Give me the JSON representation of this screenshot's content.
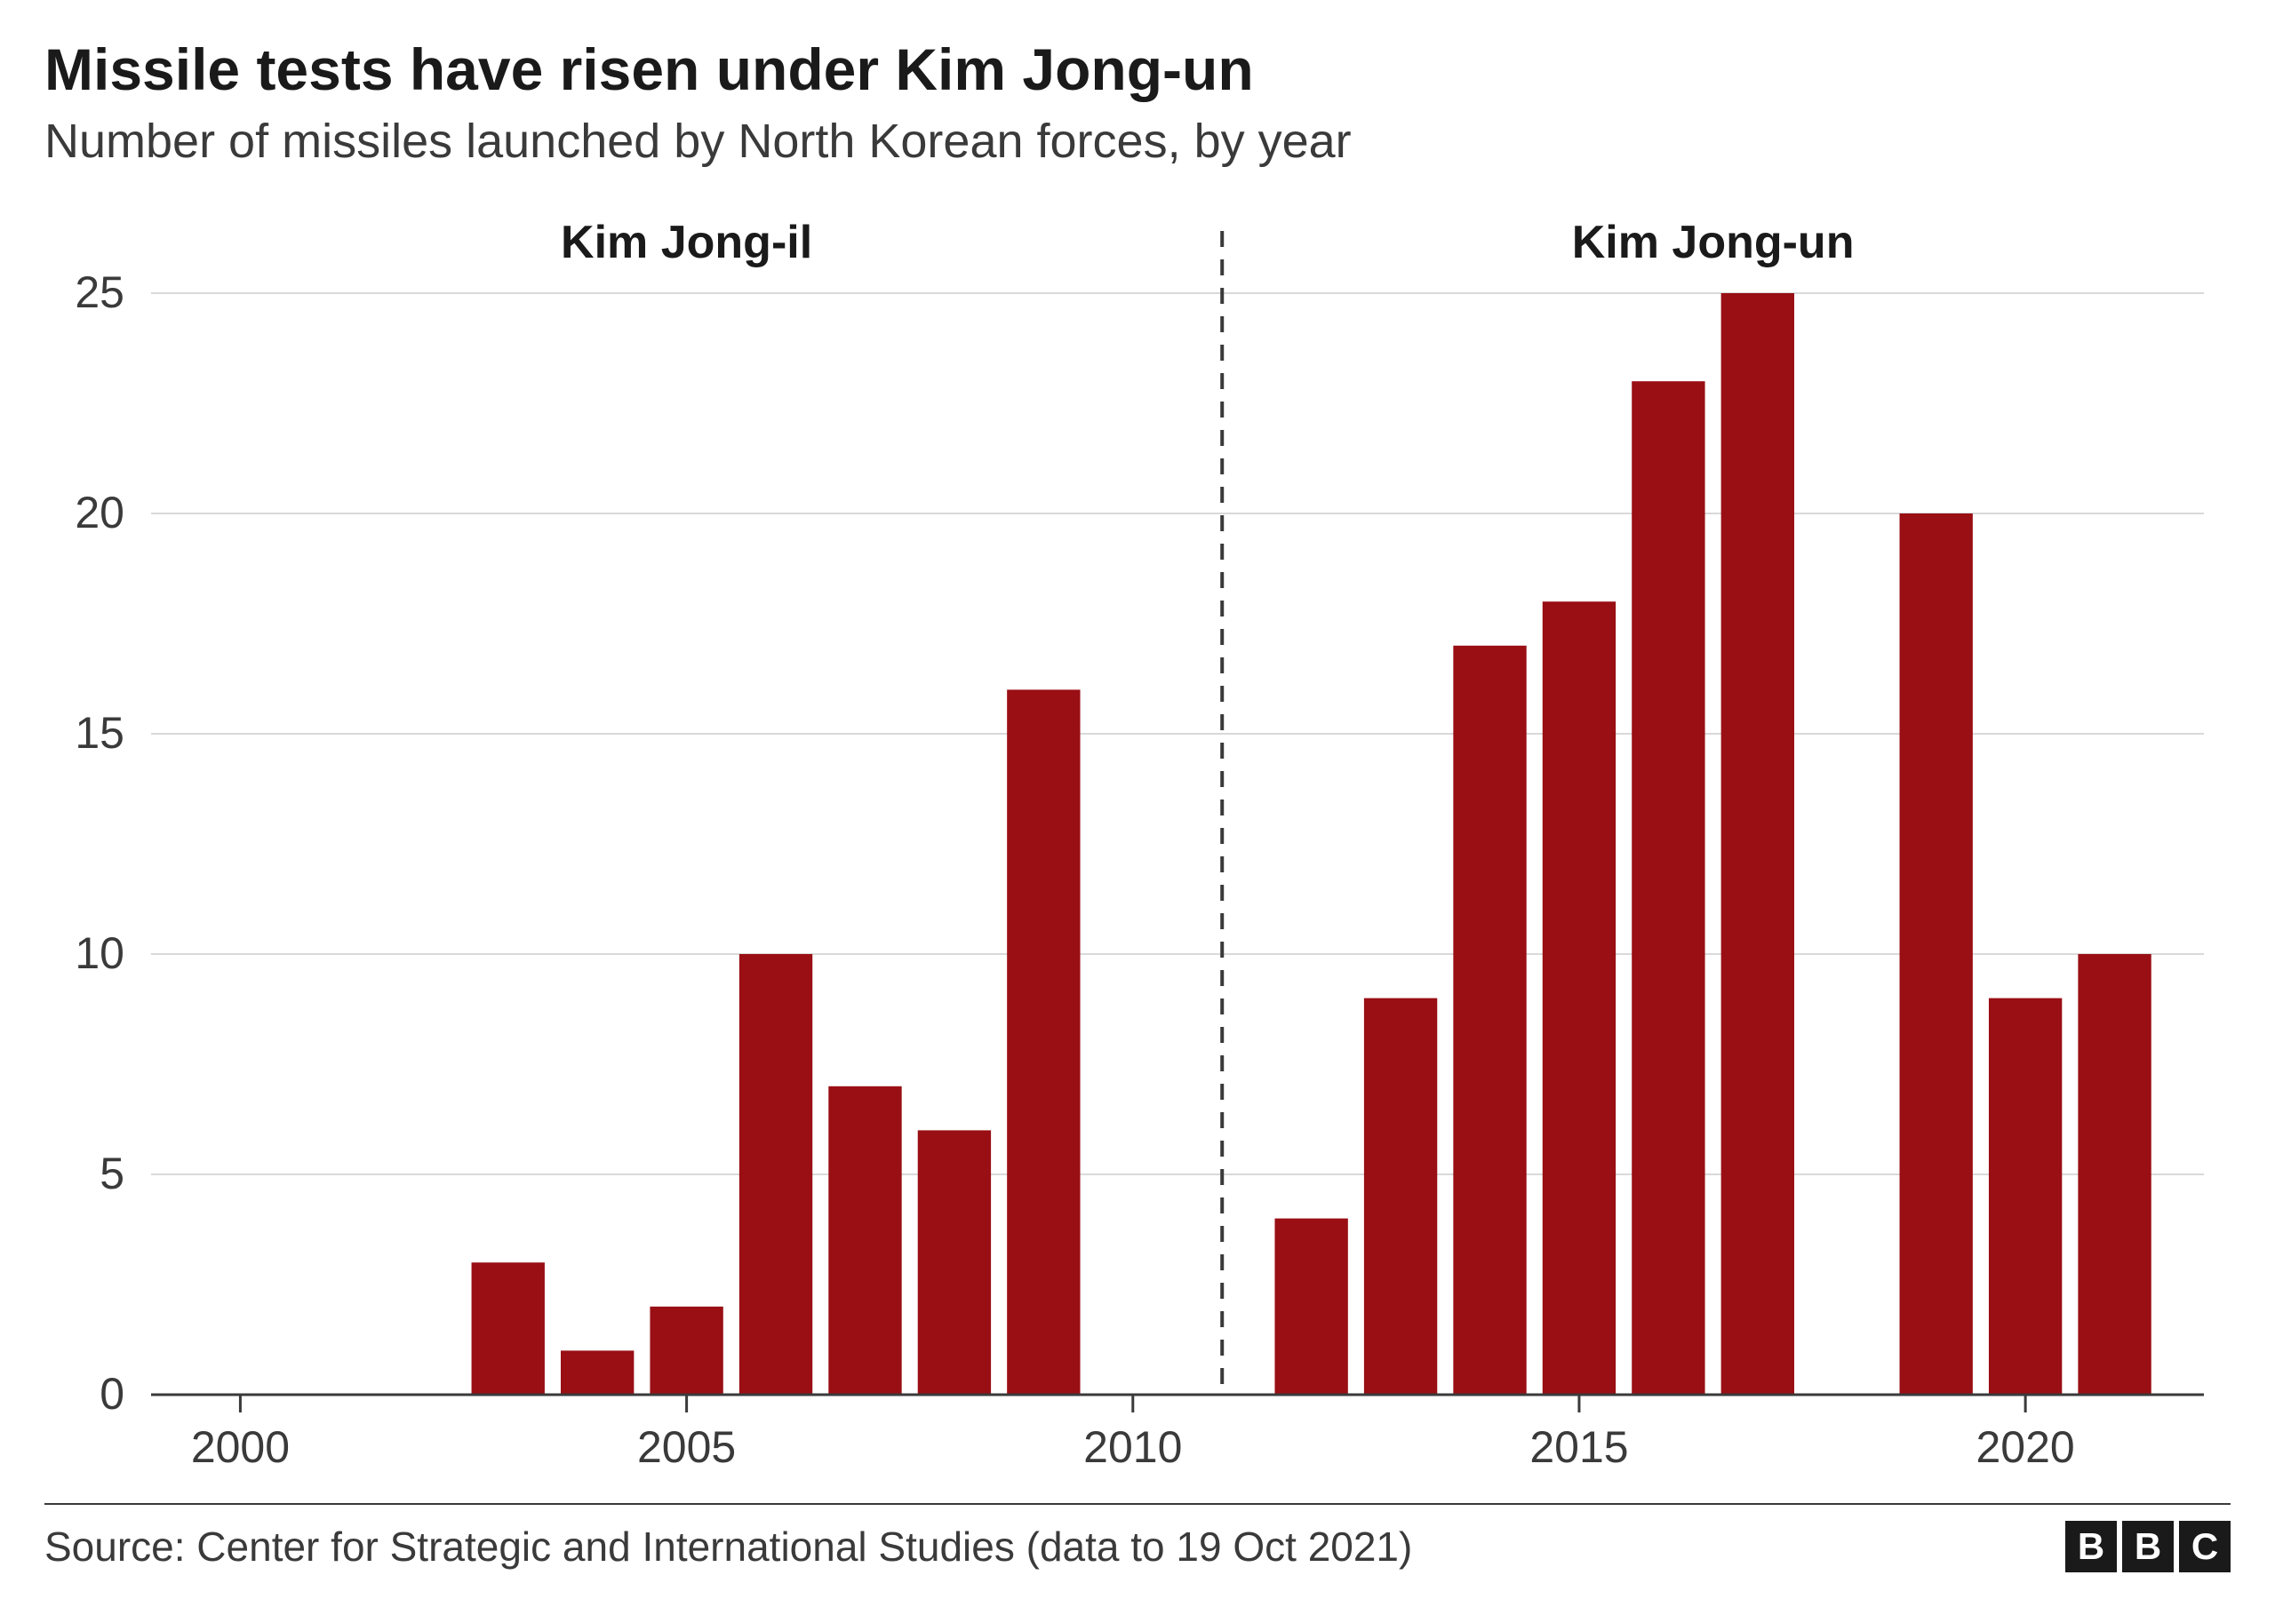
{
  "title": "Missile tests have risen under Kim Jong-un",
  "subtitle": "Number of missiles launched by North Korean forces, by year",
  "title_fontsize": 66,
  "subtitle_fontsize": 54,
  "chart": {
    "type": "bar",
    "bar_color": "#990f14",
    "background_color": "#ffffff",
    "grid_color": "#d9d9d9",
    "axis_color": "#3a3a3a",
    "ylim": [
      0,
      25
    ],
    "ytick_step": 5,
    "yticks": [
      0,
      5,
      10,
      15,
      20,
      25
    ],
    "xlim": [
      1999,
      2022
    ],
    "xticks": [
      2000,
      2005,
      2010,
      2015,
      2020
    ],
    "axis_fontsize": 50,
    "bar_width_ratio": 0.82,
    "years": [
      2000,
      2001,
      2002,
      2003,
      2004,
      2005,
      2006,
      2007,
      2008,
      2009,
      2010,
      2011,
      2012,
      2013,
      2014,
      2015,
      2016,
      2017,
      2018,
      2019,
      2020,
      2021
    ],
    "values": [
      0,
      0,
      0,
      3,
      1,
      2,
      10,
      7,
      6,
      16,
      0,
      0,
      4,
      9,
      17,
      18,
      23,
      25,
      0,
      20,
      9,
      10
    ],
    "divider_year": 2011,
    "era_left_label": "Kim Jong-il",
    "era_right_label": "Kim Jong-un",
    "era_fontsize": 52
  },
  "footer": {
    "source": "Source: Center for Strategic and International Studies (data to 19 Oct 2021)",
    "source_fontsize": 46,
    "logo_letters": [
      "B",
      "B",
      "C"
    ]
  }
}
